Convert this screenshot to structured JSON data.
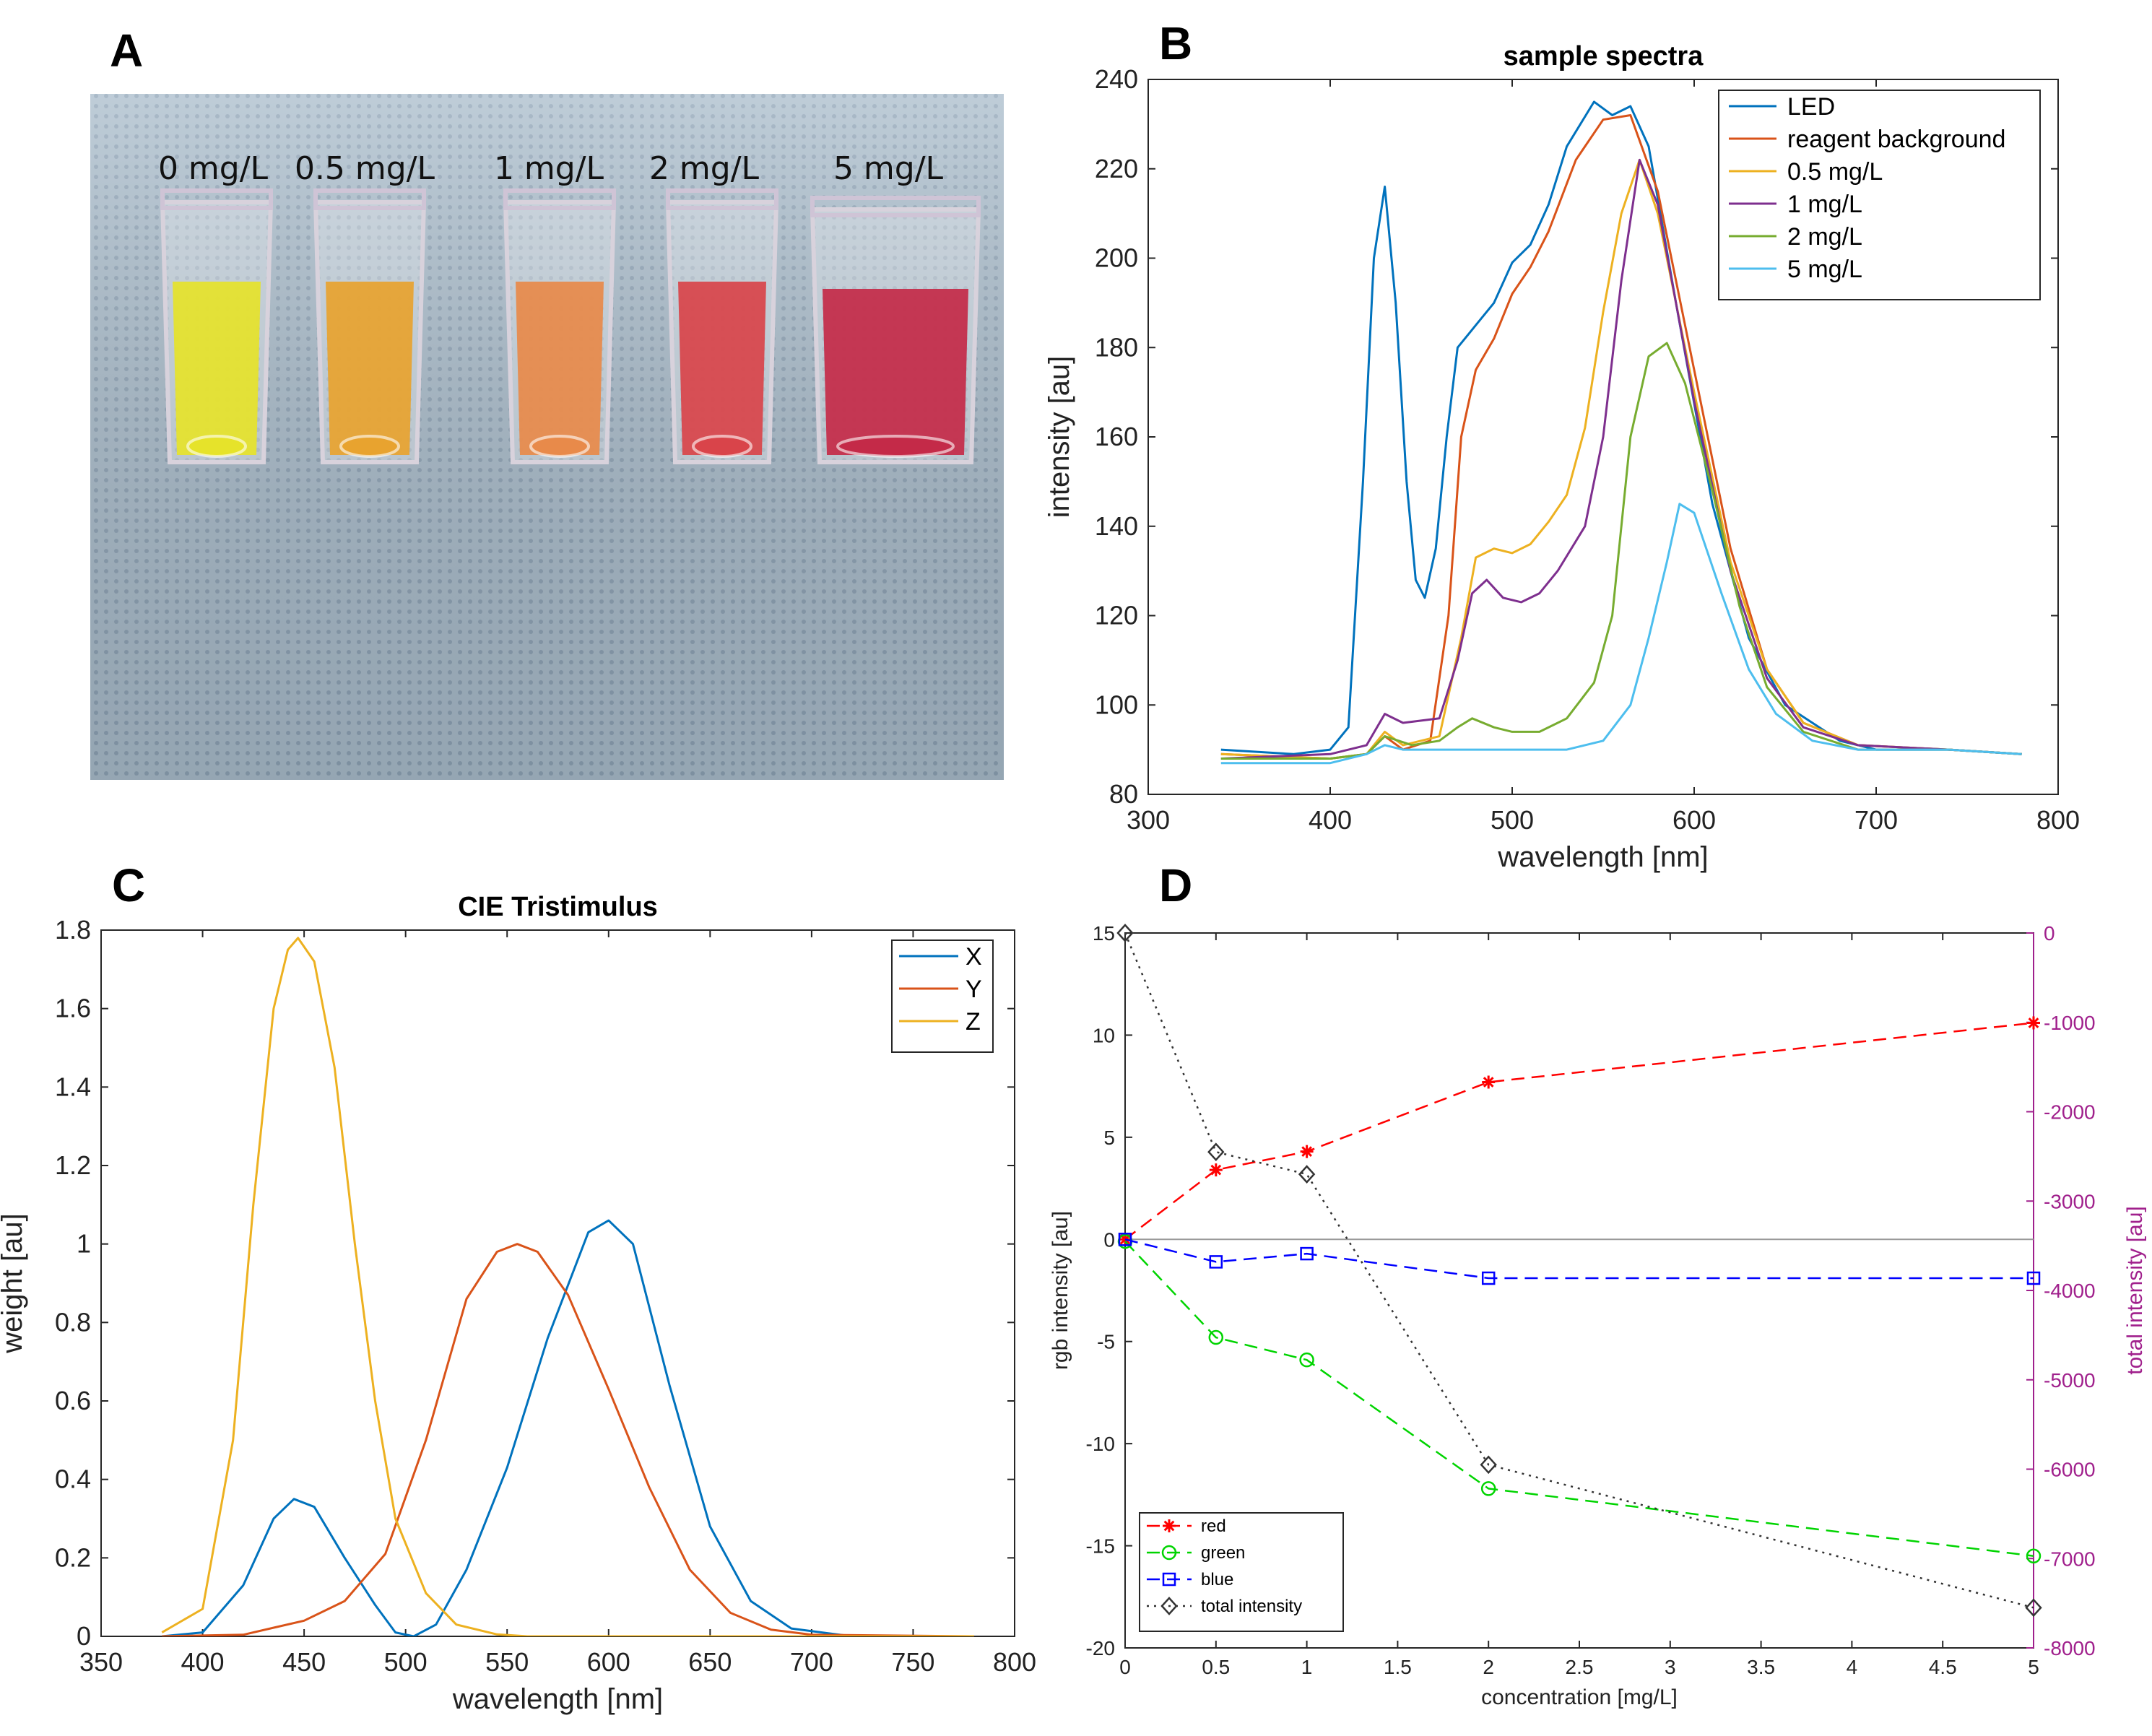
{
  "panels": {
    "a": {
      "letter": "A"
    },
    "b": {
      "letter": "B"
    },
    "c": {
      "letter": "C"
    },
    "d": {
      "letter": "D"
    }
  },
  "photo": {
    "labels": [
      "0 mg/L",
      "0.5 mg/L",
      "1 mg/L",
      "2 mg/L",
      "5 mg/L"
    ],
    "colors": [
      "#e6e32a",
      "#e8a32f",
      "#e88a4a",
      "#d9444a",
      "#c42a48"
    ],
    "background": "#9fb3c4"
  },
  "chart_data": [
    {
      "id": "sample-spectra",
      "type": "line",
      "title": "sample spectra",
      "xlabel": "wavelength [nm]",
      "ylabel": "intensity [au]",
      "xlim": [
        300,
        800
      ],
      "ylim": [
        80,
        240
      ],
      "xticks": [
        300,
        400,
        500,
        600,
        700,
        800
      ],
      "yticks": [
        80,
        100,
        120,
        140,
        160,
        180,
        200,
        220,
        240
      ],
      "legend_position": "top-right",
      "series": [
        {
          "name": "LED",
          "color": "#0072bd",
          "points": [
            [
              340,
              90
            ],
            [
              380,
              89
            ],
            [
              400,
              90
            ],
            [
              410,
              95
            ],
            [
              418,
              150
            ],
            [
              424,
              200
            ],
            [
              430,
              216
            ],
            [
              436,
              190
            ],
            [
              442,
              150
            ],
            [
              447,
              128
            ],
            [
              452,
              124
            ],
            [
              458,
              135
            ],
            [
              464,
              160
            ],
            [
              470,
              180
            ],
            [
              480,
              185
            ],
            [
              490,
              190
            ],
            [
              500,
              199
            ],
            [
              510,
              203
            ],
            [
              520,
              212
            ],
            [
              530,
              225
            ],
            [
              545,
              235
            ],
            [
              555,
              232
            ],
            [
              565,
              234
            ],
            [
              575,
              225
            ],
            [
              590,
              190
            ],
            [
              610,
              145
            ],
            [
              630,
              115
            ],
            [
              650,
              100
            ],
            [
              680,
              92
            ],
            [
              700,
              90
            ],
            [
              740,
              90
            ],
            [
              780,
              89
            ]
          ]
        },
        {
          "name": "reagent background",
          "color": "#d95319",
          "points": [
            [
              340,
              89
            ],
            [
              400,
              88
            ],
            [
              420,
              89
            ],
            [
              430,
              93
            ],
            [
              440,
              90
            ],
            [
              455,
              92
            ],
            [
              465,
              120
            ],
            [
              472,
              160
            ],
            [
              480,
              175
            ],
            [
              490,
              182
            ],
            [
              500,
              192
            ],
            [
              510,
              198
            ],
            [
              520,
              206
            ],
            [
              535,
              222
            ],
            [
              550,
              231
            ],
            [
              565,
              232
            ],
            [
              580,
              215
            ],
            [
              600,
              175
            ],
            [
              620,
              135
            ],
            [
              640,
              108
            ],
            [
              660,
              96
            ],
            [
              690,
              91
            ],
            [
              740,
              90
            ],
            [
              780,
              89
            ]
          ]
        },
        {
          "name": "0.5 mg/L",
          "color": "#edb120",
          "points": [
            [
              340,
              89
            ],
            [
              400,
              88
            ],
            [
              420,
              89
            ],
            [
              430,
              94
            ],
            [
              440,
              91
            ],
            [
              460,
              93
            ],
            [
              472,
              115
            ],
            [
              480,
              133
            ],
            [
              490,
              135
            ],
            [
              500,
              134
            ],
            [
              510,
              136
            ],
            [
              520,
              141
            ],
            [
              530,
              147
            ],
            [
              540,
              162
            ],
            [
              550,
              188
            ],
            [
              560,
              210
            ],
            [
              570,
              222
            ],
            [
              580,
              210
            ],
            [
              600,
              170
            ],
            [
              620,
              132
            ],
            [
              640,
              108
            ],
            [
              660,
              96
            ],
            [
              690,
              91
            ],
            [
              740,
              90
            ],
            [
              780,
              89
            ]
          ]
        },
        {
          "name": "1 mg/L",
          "color": "#7e2f8e",
          "points": [
            [
              340,
              88
            ],
            [
              400,
              89
            ],
            [
              420,
              91
            ],
            [
              430,
              98
            ],
            [
              440,
              96
            ],
            [
              460,
              97
            ],
            [
              470,
              110
            ],
            [
              478,
              125
            ],
            [
              486,
              128
            ],
            [
              495,
              124
            ],
            [
              505,
              123
            ],
            [
              515,
              125
            ],
            [
              525,
              130
            ],
            [
              540,
              140
            ],
            [
              550,
              160
            ],
            [
              560,
              195
            ],
            [
              570,
              222
            ],
            [
              580,
              212
            ],
            [
              600,
              168
            ],
            [
              620,
              130
            ],
            [
              640,
              106
            ],
            [
              660,
              95
            ],
            [
              690,
              91
            ],
            [
              740,
              90
            ],
            [
              780,
              89
            ]
          ]
        },
        {
          "name": "2 mg/L",
          "color": "#77ac30",
          "points": [
            [
              340,
              88
            ],
            [
              400,
              88
            ],
            [
              420,
              89
            ],
            [
              430,
              93
            ],
            [
              445,
              91
            ],
            [
              460,
              92
            ],
            [
              470,
              95
            ],
            [
              478,
              97
            ],
            [
              490,
              95
            ],
            [
              500,
              94
            ],
            [
              515,
              94
            ],
            [
              530,
              97
            ],
            [
              545,
              105
            ],
            [
              555,
              120
            ],
            [
              565,
              160
            ],
            [
              575,
              178
            ],
            [
              585,
              181
            ],
            [
              595,
              172
            ],
            [
              610,
              148
            ],
            [
              625,
              122
            ],
            [
              640,
              104
            ],
            [
              660,
              94
            ],
            [
              690,
              90
            ],
            [
              740,
              90
            ],
            [
              780,
              89
            ]
          ]
        },
        {
          "name": "5 mg/L",
          "color": "#4dbeee",
          "points": [
            [
              340,
              87
            ],
            [
              400,
              87
            ],
            [
              420,
              89
            ],
            [
              430,
              91
            ],
            [
              440,
              90
            ],
            [
              470,
              90
            ],
            [
              500,
              90
            ],
            [
              530,
              90
            ],
            [
              550,
              92
            ],
            [
              565,
              100
            ],
            [
              575,
              115
            ],
            [
              585,
              132
            ],
            [
              592,
              145
            ],
            [
              600,
              143
            ],
            [
              615,
              125
            ],
            [
              630,
              108
            ],
            [
              645,
              98
            ],
            [
              665,
              92
            ],
            [
              690,
              90
            ],
            [
              740,
              90
            ],
            [
              780,
              89
            ]
          ]
        }
      ]
    },
    {
      "id": "cie-tristimulus",
      "type": "line",
      "title": "CIE Tristimulus",
      "xlabel": "wavelength [nm]",
      "ylabel": "weight [au]",
      "xlim": [
        350,
        800
      ],
      "ylim": [
        0,
        1.8
      ],
      "xticks": [
        350,
        400,
        450,
        500,
        550,
        600,
        650,
        700,
        750,
        800
      ],
      "yticks": [
        0,
        0.2,
        0.4,
        0.6,
        0.8,
        1,
        1.2,
        1.4,
        1.6,
        1.8
      ],
      "legend_position": "top-right",
      "series": [
        {
          "name": "X",
          "color": "#0072bd",
          "points": [
            [
              380,
              0
            ],
            [
              400,
              0.01
            ],
            [
              420,
              0.13
            ],
            [
              435,
              0.3
            ],
            [
              445,
              0.35
            ],
            [
              455,
              0.33
            ],
            [
              470,
              0.2
            ],
            [
              485,
              0.08
            ],
            [
              495,
              0.01
            ],
            [
              504,
              0
            ],
            [
              515,
              0.03
            ],
            [
              530,
              0.17
            ],
            [
              550,
              0.43
            ],
            [
              570,
              0.76
            ],
            [
              590,
              1.03
            ],
            [
              600,
              1.06
            ],
            [
              612,
              1.0
            ],
            [
              630,
              0.64
            ],
            [
              650,
              0.28
            ],
            [
              670,
              0.09
            ],
            [
              690,
              0.02
            ],
            [
              720,
              0
            ],
            [
              780,
              0
            ]
          ]
        },
        {
          "name": "Y",
          "color": "#d95319",
          "points": [
            [
              380,
              0
            ],
            [
              420,
              0.004
            ],
            [
              450,
              0.04
            ],
            [
              470,
              0.09
            ],
            [
              490,
              0.21
            ],
            [
              510,
              0.5
            ],
            [
              530,
              0.86
            ],
            [
              545,
              0.98
            ],
            [
              555,
              1.0
            ],
            [
              565,
              0.98
            ],
            [
              580,
              0.87
            ],
            [
              600,
              0.63
            ],
            [
              620,
              0.38
            ],
            [
              640,
              0.17
            ],
            [
              660,
              0.06
            ],
            [
              680,
              0.017
            ],
            [
              700,
              0.004
            ],
            [
              780,
              0
            ]
          ]
        },
        {
          "name": "Z",
          "color": "#edb120",
          "points": [
            [
              380,
              0.01
            ],
            [
              400,
              0.07
            ],
            [
              415,
              0.5
            ],
            [
              425,
              1.1
            ],
            [
              435,
              1.6
            ],
            [
              442,
              1.75
            ],
            [
              447,
              1.78
            ],
            [
              455,
              1.72
            ],
            [
              465,
              1.45
            ],
            [
              475,
              1.0
            ],
            [
              485,
              0.6
            ],
            [
              495,
              0.3
            ],
            [
              510,
              0.11
            ],
            [
              525,
              0.03
            ],
            [
              545,
              0.005
            ],
            [
              560,
              0
            ],
            [
              780,
              0
            ]
          ]
        }
      ]
    },
    {
      "id": "rgb-intensity",
      "type": "line",
      "title": "",
      "xlabel": "concentration [mg/L]",
      "ylabel": "rgb intensity [au]",
      "y2label": "total intensity [au]",
      "xlim": [
        0,
        5
      ],
      "ylim": [
        -20,
        15
      ],
      "y2lim": [
        -8000,
        0
      ],
      "xticks": [
        0,
        0.5,
        1,
        1.5,
        2,
        2.5,
        3,
        3.5,
        4,
        4.5,
        5
      ],
      "yticks": [
        -20,
        -15,
        -10,
        -5,
        0,
        5,
        10,
        15
      ],
      "y2ticks": [
        -8000,
        -7000,
        -6000,
        -5000,
        -4000,
        -3000,
        -2000,
        -1000,
        0
      ],
      "legend_position": "bottom-left",
      "x": [
        0,
        0.5,
        1,
        2,
        5
      ],
      "series": [
        {
          "name": "red",
          "color": "#ff0000",
          "marker": "star",
          "axis": "left",
          "values": [
            0,
            3.4,
            4.3,
            7.7,
            10.6
          ]
        },
        {
          "name": "green",
          "color": "#00d400",
          "marker": "circle",
          "axis": "left",
          "values": [
            -0.1,
            -4.8,
            -5.9,
            -12.2,
            -15.5
          ]
        },
        {
          "name": "blue",
          "color": "#0000ff",
          "marker": "square",
          "axis": "left",
          "values": [
            0,
            -1.1,
            -0.7,
            -1.9,
            -1.9
          ]
        },
        {
          "name": "total intensity",
          "color": "#333333",
          "marker": "diamond",
          "axis": "right",
          "values": [
            0,
            -2450,
            -2700,
            -5950,
            -7550
          ]
        }
      ]
    }
  ]
}
